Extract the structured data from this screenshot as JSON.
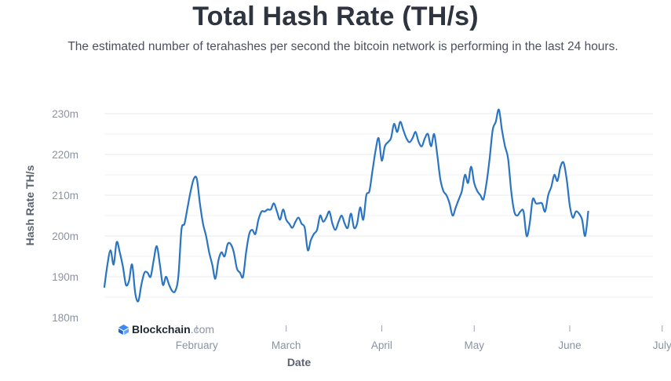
{
  "chart_data": {
    "type": "line",
    "title": "Total Hash Rate (TH/s)",
    "subtitle": "The estimated number of terahashes per second the bitcoin network is performing in the last 24 hours.",
    "xlabel": "Date",
    "ylabel": "Hash Rate TH/s",
    "ylim": [
      180,
      230
    ],
    "ytick_labels": [
      "180m",
      "190m",
      "200m",
      "210m",
      "220m",
      "230m"
    ],
    "ytick_values": [
      180,
      190,
      200,
      210,
      220,
      230
    ],
    "xtick_labels": [
      "February",
      "March",
      "April",
      "May",
      "June",
      "July"
    ],
    "xtick_values": [
      30,
      59,
      90,
      120,
      151,
      181
    ],
    "xlim": [
      0,
      178
    ],
    "grid": true,
    "line_color": "#2a74c2",
    "series": [
      {
        "name": "Hash Rate",
        "points": [
          [
            0,
            187.5
          ],
          [
            1,
            193
          ],
          [
            2,
            196.5
          ],
          [
            3,
            193
          ],
          [
            4,
            198.5
          ],
          [
            5,
            196
          ],
          [
            6,
            192.5
          ],
          [
            7,
            188
          ],
          [
            8,
            189
          ],
          [
            9,
            193
          ],
          [
            10,
            186
          ],
          [
            11,
            184
          ],
          [
            12,
            188
          ],
          [
            13,
            191
          ],
          [
            14,
            191
          ],
          [
            15,
            190
          ],
          [
            16,
            194
          ],
          [
            17,
            197.5
          ],
          [
            18,
            193
          ],
          [
            19,
            188
          ],
          [
            20,
            190
          ],
          [
            21,
            188
          ],
          [
            22,
            186.5
          ],
          [
            23,
            186.5
          ],
          [
            24,
            190
          ],
          [
            25,
            201.5
          ],
          [
            26,
            203
          ],
          [
            27,
            207
          ],
          [
            28,
            211
          ],
          [
            29,
            214
          ],
          [
            30,
            214
          ],
          [
            31,
            208
          ],
          [
            32,
            203
          ],
          [
            33,
            200
          ],
          [
            34,
            196
          ],
          [
            35,
            193
          ],
          [
            36,
            189.5
          ],
          [
            37,
            194
          ],
          [
            38,
            196
          ],
          [
            39,
            195
          ],
          [
            40,
            198
          ],
          [
            41,
            198
          ],
          [
            42,
            196
          ],
          [
            43,
            192
          ],
          [
            44,
            191
          ],
          [
            45,
            190
          ],
          [
            46,
            196
          ],
          [
            47,
            200.5
          ],
          [
            48,
            201.5
          ],
          [
            49,
            200.5
          ],
          [
            50,
            204
          ],
          [
            51,
            206
          ],
          [
            52,
            206
          ],
          [
            53,
            206.5
          ],
          [
            54,
            206.5
          ],
          [
            55,
            208
          ],
          [
            56,
            206
          ],
          [
            57,
            204
          ],
          [
            58,
            206.5
          ],
          [
            59,
            204
          ],
          [
            60,
            203
          ],
          [
            61,
            202
          ],
          [
            62,
            203.5
          ],
          [
            63,
            204.5
          ],
          [
            64,
            203
          ],
          [
            65,
            202
          ],
          [
            66,
            196.5
          ],
          [
            67,
            199
          ],
          [
            68,
            200.5
          ],
          [
            69,
            201.5
          ],
          [
            70,
            205
          ],
          [
            71,
            203.5
          ],
          [
            72,
            204.5
          ],
          [
            73,
            206
          ],
          [
            74,
            203
          ],
          [
            75,
            201.5
          ],
          [
            76,
            203.5
          ],
          [
            77,
            205
          ],
          [
            78,
            203
          ],
          [
            79,
            202
          ],
          [
            80,
            205.5
          ],
          [
            81,
            202
          ],
          [
            82,
            203
          ],
          [
            83,
            207
          ],
          [
            84,
            204
          ],
          [
            85,
            210
          ],
          [
            86,
            211
          ],
          [
            87,
            216
          ],
          [
            88,
            221
          ],
          [
            89,
            224
          ],
          [
            90,
            218.5
          ],
          [
            91,
            222
          ],
          [
            92,
            223
          ],
          [
            93,
            224
          ],
          [
            94,
            227.5
          ],
          [
            95,
            225.5
          ],
          [
            96,
            228
          ],
          [
            97,
            226
          ],
          [
            98,
            224
          ],
          [
            99,
            223
          ],
          [
            100,
            224
          ],
          [
            101,
            225.5
          ],
          [
            102,
            223
          ],
          [
            103,
            222
          ],
          [
            104,
            224
          ],
          [
            105,
            225
          ],
          [
            106,
            222
          ],
          [
            107,
            225
          ],
          [
            108,
            220
          ],
          [
            109,
            214
          ],
          [
            110,
            211
          ],
          [
            111,
            210
          ],
          [
            112,
            208
          ],
          [
            113,
            205
          ],
          [
            114,
            207
          ],
          [
            115,
            209
          ],
          [
            116,
            211
          ],
          [
            117,
            215
          ],
          [
            118,
            213
          ],
          [
            119,
            217
          ],
          [
            120,
            213
          ],
          [
            121,
            211
          ],
          [
            122,
            210
          ],
          [
            123,
            209
          ],
          [
            124,
            213
          ],
          [
            125,
            219
          ],
          [
            126,
            226
          ],
          [
            127,
            228
          ],
          [
            128,
            231
          ],
          [
            129,
            226
          ],
          [
            130,
            222
          ],
          [
            131,
            219
          ],
          [
            132,
            211
          ],
          [
            133,
            206
          ],
          [
            134,
            205
          ],
          [
            135,
            206
          ],
          [
            136,
            206
          ],
          [
            137,
            200
          ],
          [
            138,
            203
          ],
          [
            139,
            209
          ],
          [
            140,
            208
          ],
          [
            141,
            208
          ],
          [
            142,
            208
          ],
          [
            143,
            206
          ],
          [
            144,
            210
          ],
          [
            145,
            212
          ],
          [
            146,
            215
          ],
          [
            147,
            213.5
          ],
          [
            148,
            217
          ],
          [
            149,
            218
          ],
          [
            150,
            214
          ],
          [
            151,
            207.5
          ],
          [
            152,
            204.5
          ],
          [
            153,
            206
          ],
          [
            154,
            205.5
          ],
          [
            155,
            204
          ],
          [
            156,
            200
          ],
          [
            157,
            206
          ]
        ]
      }
    ]
  },
  "branding": {
    "name": "Blockchain",
    "tld": ".com"
  }
}
